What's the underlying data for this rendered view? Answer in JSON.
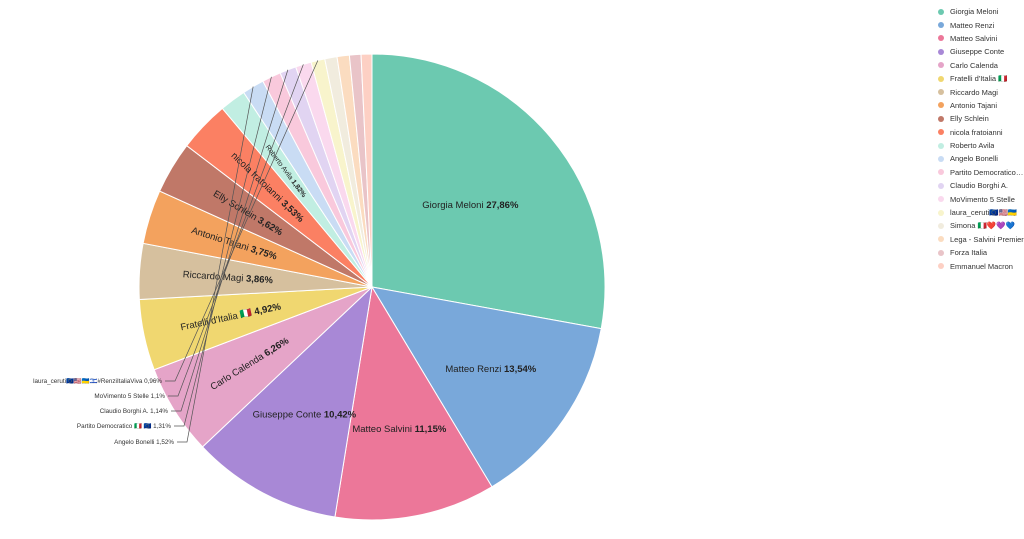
{
  "chart_data": {
    "type": "pie",
    "title": "",
    "slices": [
      {
        "name": "Giorgia Meloni",
        "value": 27.86,
        "label": "27,86%",
        "color": "#6cc9b0"
      },
      {
        "name": "Matteo Renzi",
        "value": 13.54,
        "label": "13,54%",
        "color": "#79a8da"
      },
      {
        "name": "Matteo Salvini",
        "value": 11.15,
        "label": "11,15%",
        "color": "#ec7799"
      },
      {
        "name": "Giuseppe Conte",
        "value": 10.42,
        "label": "10,42%",
        "color": "#a888d6"
      },
      {
        "name": "Carlo Calenda",
        "value": 6.26,
        "label": "6,26%",
        "color": "#e5a4c8"
      },
      {
        "name": "Fratelli d'Italia 🇮🇹",
        "value": 4.92,
        "label": "4,92%",
        "color": "#f0d770"
      },
      {
        "name": "Riccardo Magi",
        "value": 3.86,
        "label": "3,86%",
        "color": "#d6c09e"
      },
      {
        "name": "Antonio Tajani",
        "value": 3.75,
        "label": "3,75%",
        "color": "#f3a25e"
      },
      {
        "name": "Elly Schlein",
        "value": 3.62,
        "label": "3,62%",
        "color": "#c07868"
      },
      {
        "name": "nicola fratoianni",
        "value": 3.53,
        "label": "3,53%",
        "color": "#fb8063"
      },
      {
        "name": "Roberto Avila",
        "value": 1.82,
        "label": "1,82%",
        "color": "#c1eee2"
      },
      {
        "name": "Angelo Bonelli",
        "value": 1.52,
        "label": "1,52%",
        "color": "#c9dcf4"
      },
      {
        "name": "Partito Democratico 🇮🇹 🇪🇺",
        "value": 1.31,
        "label": "1,31%",
        "color": "#f9c9dc"
      },
      {
        "name": "Claudio Borghi A.",
        "value": 1.14,
        "label": "1,14%",
        "color": "#e1d4f2"
      },
      {
        "name": "MoVimento 5 Stelle",
        "value": 1.1,
        "label": "1,1%",
        "color": "#fad9ee"
      },
      {
        "name": "laura_ceruti🇪🇺🇺🇸🇺🇦🇮🇱#RenziItaliaViva",
        "value": 0.96,
        "label": "0,96%",
        "color": "#f8f4cc"
      },
      {
        "name": "Simona 🇮🇹❤️💜💙",
        "value": 0.85,
        "label": "",
        "color": "#f1ecde"
      },
      {
        "name": "Lega - Salvini Premier",
        "value": 0.85,
        "label": "",
        "color": "#fbdcc0"
      },
      {
        "name": "Forza Italia",
        "value": 0.8,
        "label": "",
        "color": "#e9c4c8"
      },
      {
        "name": "Emmanuel Macron",
        "value": 0.75,
        "label": "",
        "color": "#fdd0c4"
      }
    ],
    "outer_labels": [
      {
        "text": "laura_ceruti🇪🇺🇺🇸🇺🇦🇮🇱#RenziItaliaViva",
        "pct": "0,96%",
        "slice": 15
      },
      {
        "text": "MoVimento 5 Stelle",
        "pct": "1,1%",
        "slice": 14
      },
      {
        "text": "Claudio Borghi A.",
        "pct": "1,14%",
        "slice": 13
      },
      {
        "text": "Partito Democratico 🇮🇹 🇪🇺",
        "pct": "1,31%",
        "slice": 12
      },
      {
        "text": "Angelo Bonelli",
        "pct": "1,52%",
        "slice": 11
      }
    ],
    "legend": {
      "position": "top-right",
      "items": [
        "Giorgia Meloni",
        "Matteo Renzi",
        "Matteo Salvini",
        "Giuseppe Conte",
        "Carlo Calenda",
        "Fratelli d'Italia 🇮🇹",
        "Riccardo Magi",
        "Antonio Tajani",
        "Elly Schlein",
        "nicola fratoianni",
        "Roberto Avila",
        "Angelo Bonelli",
        "Partito Democratico 🇮🇹 🇪🇺",
        "Claudio Borghi A.",
        "MoVimento 5 Stelle",
        "laura_ceruti🇪🇺🇺🇸🇺🇦",
        "Simona 🇮🇹❤️💜💙",
        "Lega - Salvini Premier",
        "Forza Italia",
        "Emmanuel Macron"
      ]
    }
  }
}
